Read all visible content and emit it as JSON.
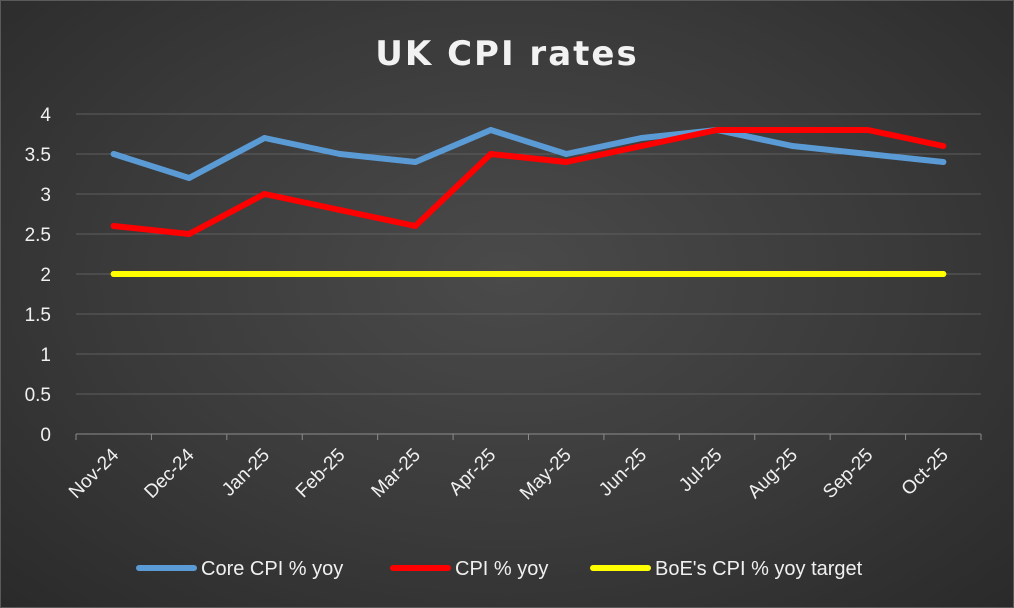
{
  "chart_data": {
    "type": "line",
    "title": "UK CPI rates",
    "xlabel": "",
    "ylabel": "",
    "categories": [
      "Nov-24",
      "Dec-24",
      "Jan-25",
      "Feb-25",
      "Mar-25",
      "Apr-25",
      "May-25",
      "Jun-25",
      "Jul-25",
      "Aug-25",
      "Sep-25",
      "Oct-25"
    ],
    "ylim": [
      0,
      4
    ],
    "yticks": [
      "0",
      "0.5",
      "1",
      "1.5",
      "2",
      "2.5",
      "3",
      "3.5",
      "4"
    ],
    "grid": true,
    "legend_position": "bottom",
    "series": [
      {
        "name": "Core CPI % yoy",
        "color": "#5b9bd5",
        "values": [
          3.5,
          3.2,
          3.7,
          3.5,
          3.4,
          3.8,
          3.5,
          3.7,
          3.8,
          3.6,
          3.5,
          3.4
        ]
      },
      {
        "name": "CPI % yoy",
        "color": "#ff0000",
        "values": [
          2.6,
          2.5,
          3.0,
          2.8,
          2.6,
          3.5,
          3.4,
          3.6,
          3.8,
          3.8,
          3.8,
          3.6
        ]
      },
      {
        "name": "BoE's CPI % yoy target",
        "color": "#ffff00",
        "values": [
          2,
          2,
          2,
          2,
          2,
          2,
          2,
          2,
          2,
          2,
          2,
          2
        ]
      }
    ]
  }
}
